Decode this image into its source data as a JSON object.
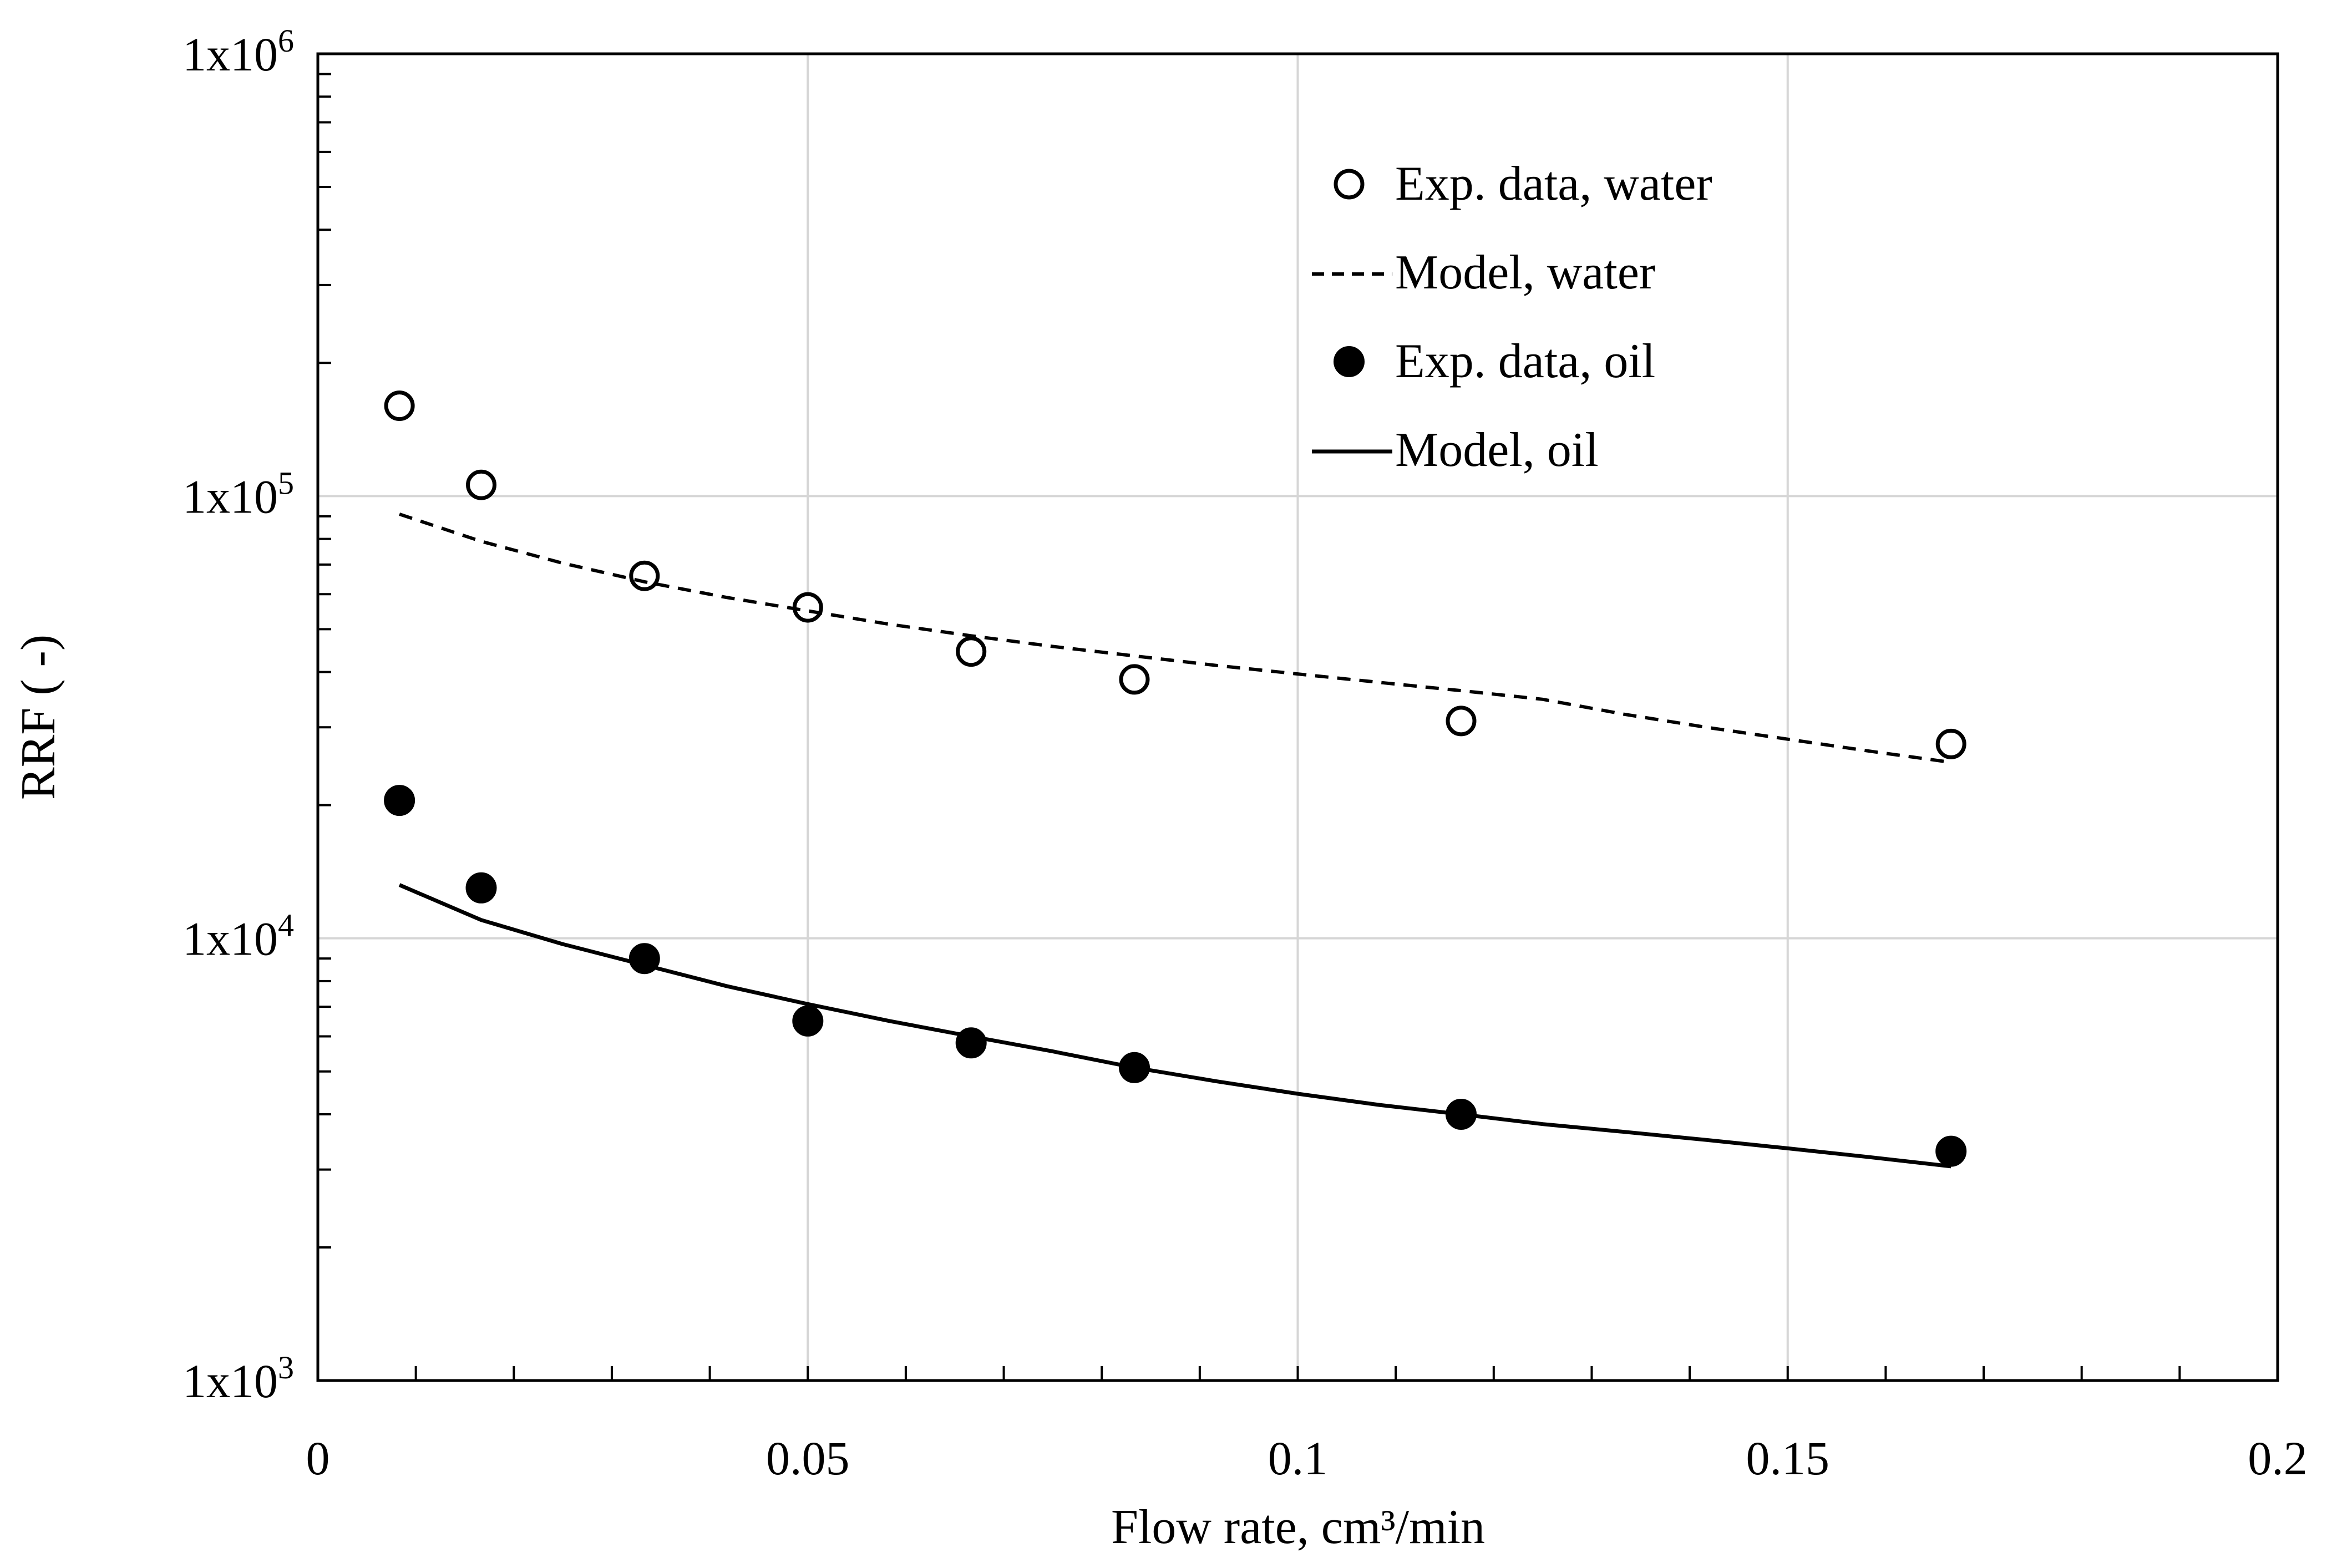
{
  "chart_data": {
    "type": "scatter",
    "xlabel": "Flow rate, cm³/min",
    "ylabel": "RRF ( -)",
    "xlim": [
      0,
      0.2
    ],
    "ylim": [
      1000,
      1000000
    ],
    "yscale": "log",
    "x_ticks": [
      "0",
      "0.05",
      "0.1",
      "0.15",
      "0.2"
    ],
    "y_ticks": [
      {
        "base": "1x10",
        "exp": "3"
      },
      {
        "base": "1x10",
        "exp": "4"
      },
      {
        "base": "1x10",
        "exp": "5"
      },
      {
        "base": "1x10",
        "exp": "6"
      }
    ],
    "grid": true,
    "legend_position": "top-right",
    "series": [
      {
        "name": "Exp. data, water",
        "kind": "markers",
        "marker": "open-circle",
        "x": [
          0.00833,
          0.01667,
          0.03333,
          0.05,
          0.06667,
          0.08333,
          0.11667,
          0.16667
        ],
        "y": [
          160000,
          106000,
          66000,
          56000,
          44500,
          38500,
          31000,
          27500
        ]
      },
      {
        "name": "Model, water",
        "kind": "line",
        "line_style": "dashed",
        "x": [
          0.00833,
          0.01667,
          0.025,
          0.03333,
          0.04167,
          0.05,
          0.05833,
          0.06667,
          0.075,
          0.08333,
          0.09167,
          0.1,
          0.10833,
          0.11667,
          0.125,
          0.13333,
          0.14167,
          0.15,
          0.15833,
          0.16667
        ],
        "y": [
          91000,
          79000,
          70500,
          64000,
          59000,
          55000,
          51300,
          48300,
          45700,
          43500,
          41400,
          39600,
          37900,
          36300,
          34700,
          32100,
          30000,
          28200,
          26500,
          25000
        ]
      },
      {
        "name": "Exp. data, oil",
        "kind": "markers",
        "marker": "filled-circle",
        "x": [
          0.00833,
          0.01667,
          0.03333,
          0.05,
          0.06667,
          0.08333,
          0.11667,
          0.16667
        ],
        "y": [
          20500,
          13000,
          9000,
          6500,
          5800,
          5100,
          4000,
          3300
        ]
      },
      {
        "name": "Model, oil",
        "kind": "line",
        "line_style": "solid",
        "x": [
          0.00833,
          0.01667,
          0.025,
          0.03333,
          0.04167,
          0.05,
          0.05833,
          0.06667,
          0.075,
          0.08333,
          0.09167,
          0.1,
          0.10833,
          0.11667,
          0.125,
          0.13333,
          0.14167,
          0.15,
          0.15833,
          0.16667
        ],
        "y": [
          13200,
          11000,
          9700,
          8700,
          7800,
          7100,
          6500,
          6000,
          5550,
          5100,
          4750,
          4450,
          4200,
          4000,
          3800,
          3650,
          3500,
          3350,
          3200,
          3050
        ]
      }
    ]
  }
}
